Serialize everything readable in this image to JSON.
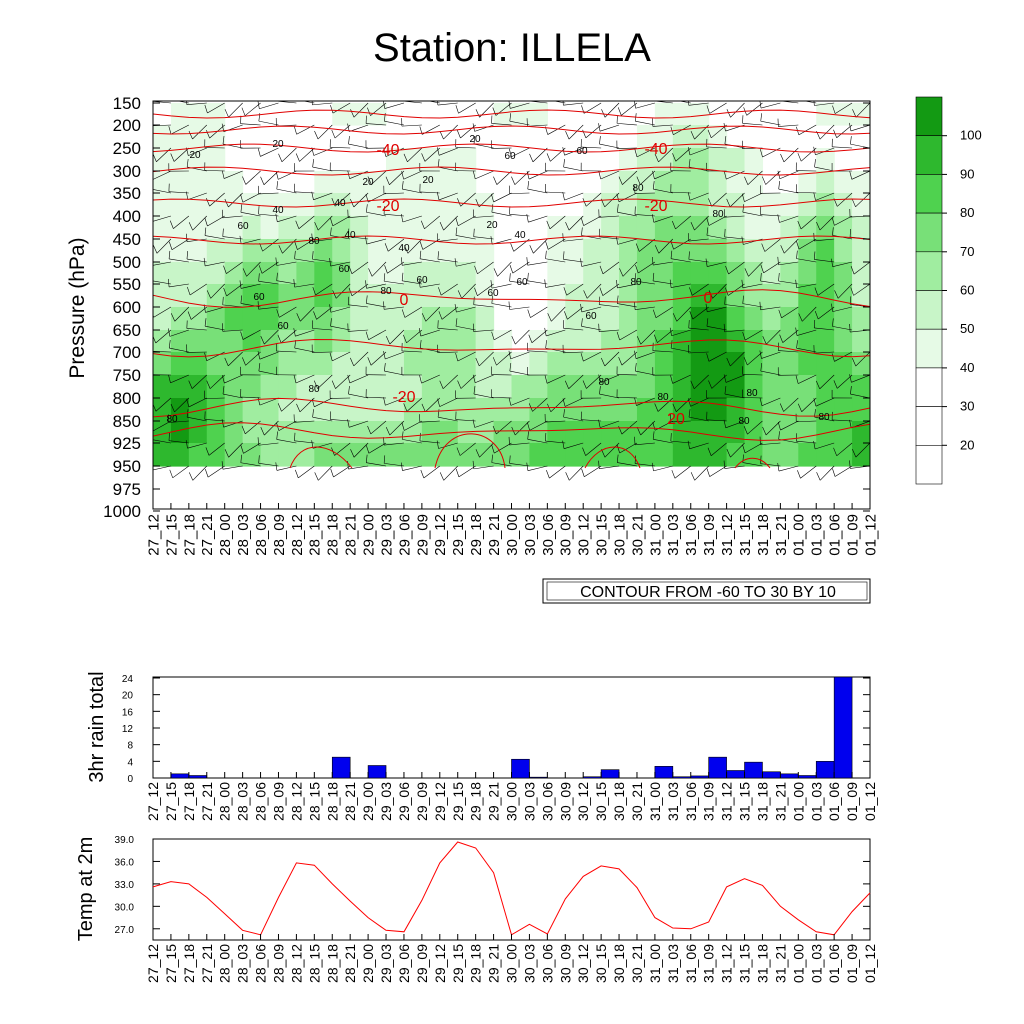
{
  "title": "Station: ILLELA",
  "time_labels": [
    "27_12",
    "27_15",
    "27_18",
    "27_21",
    "28_00",
    "28_03",
    "28_06",
    "28_09",
    "28_12",
    "28_15",
    "28_18",
    "28_21",
    "29_00",
    "29_03",
    "29_06",
    "29_09",
    "29_12",
    "29_15",
    "29_18",
    "29_21",
    "30_00",
    "30_03",
    "30_06",
    "30_09",
    "30_12",
    "30_15",
    "30_18",
    "30_21",
    "31_00",
    "31_03",
    "31_06",
    "31_09",
    "31_12",
    "31_15",
    "31_18",
    "31_21",
    "01_00",
    "01_03",
    "01_06",
    "01_09",
    "01_12"
  ],
  "chart_data": [
    {
      "type": "heatmap",
      "ylabel": "Pressure (hPa)",
      "xlabel": "",
      "y_ticks": [
        150,
        200,
        250,
        300,
        350,
        400,
        450,
        500,
        550,
        600,
        650,
        700,
        750,
        800,
        850,
        925,
        950,
        975,
        1000
      ],
      "colorbar": {
        "levels": [
          20,
          30,
          40,
          50,
          60,
          70,
          80,
          90,
          100
        ],
        "colors": [
          "#ffffff",
          "#ffffff",
          "#ffffff",
          "#e6fae6",
          "#c8f5c8",
          "#a0eda0",
          "#78e078",
          "#4fd24f",
          "#2eb82e",
          "#139a13"
        ]
      },
      "contour_info": "CONTOUR FROM -60 TO 30 BY 10",
      "temperature_contour_labels": [
        "-40",
        "-40",
        "-20",
        "-20",
        "0",
        "0",
        "-20",
        "20"
      ],
      "rh_contour_labels": [
        "20",
        "20",
        "20",
        "20",
        "20",
        "20",
        "40",
        "40",
        "40",
        "40",
        "40",
        "60",
        "60",
        "60",
        "60",
        "60",
        "60",
        "60",
        "60",
        "60",
        "60",
        "80",
        "80",
        "80",
        "80",
        "80",
        "80",
        "80",
        "80",
        "80",
        "80",
        "80",
        "80"
      ]
    },
    {
      "type": "bar",
      "ylabel": "3hr rain total",
      "ylim": [
        0,
        24
      ],
      "y_ticks": [
        0,
        4,
        8,
        12,
        16,
        20,
        24
      ],
      "bar_color": "#0000ee",
      "values": [
        0,
        1,
        0.6,
        0,
        0,
        0,
        0,
        0,
        0,
        0,
        5,
        0,
        3,
        0,
        0,
        0,
        0,
        0,
        0,
        0,
        4.5,
        0.2,
        0,
        0,
        0.3,
        2,
        0,
        0,
        2.8,
        0.3,
        0.5,
        5,
        1.8,
        3.8,
        1.5,
        1,
        0.6,
        4,
        25,
        0,
        1.2
      ]
    },
    {
      "type": "line",
      "ylabel": "Temp at 2m",
      "ylim": [
        25.5,
        39
      ],
      "y_ticks": [
        "27.0",
        "30.0",
        "33.0",
        "36.0",
        "39.0"
      ],
      "line_color": "#ff0000",
      "values": [
        32.6,
        33.3,
        33.0,
        31.2,
        29.0,
        26.8,
        26.2,
        31.2,
        35.8,
        35.5,
        33.0,
        30.7,
        28.5,
        26.8,
        26.6,
        30.8,
        35.8,
        38.6,
        37.8,
        34.5,
        26.2,
        27.6,
        26.3,
        31.0,
        34.0,
        35.4,
        35.0,
        32.5,
        28.5,
        27.1,
        27.0,
        27.9,
        32.6,
        33.7,
        32.8,
        30.0,
        28.2,
        26.6,
        26.2,
        29.3,
        31.8
      ]
    }
  ]
}
